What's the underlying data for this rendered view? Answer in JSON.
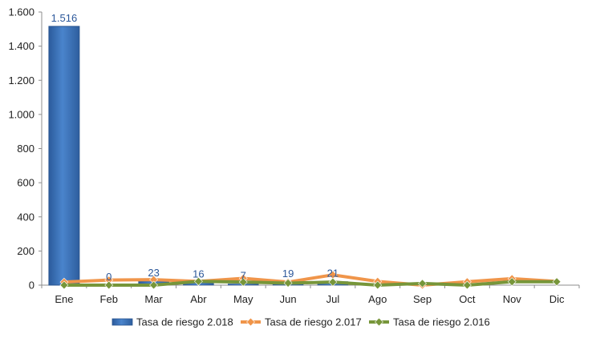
{
  "chart_data": {
    "type": "bar",
    "categories": [
      "Ene",
      "Feb",
      "Mar",
      "Abr",
      "May",
      "Jun",
      "Jul",
      "Ago",
      "Sep",
      "Oct",
      "Nov",
      "Dic"
    ],
    "ylim": [
      0,
      1600
    ],
    "yticks": [
      0,
      200,
      400,
      600,
      800,
      1000,
      1200,
      1400,
      1600
    ],
    "ytick_labels": [
      "0",
      "200",
      "400",
      "600",
      "800",
      "1.000",
      "1.200",
      "1.400",
      "1.600"
    ],
    "grid": false,
    "legend_position": "bottom",
    "series": [
      {
        "name": "Tasa de riesgo 2.018",
        "type": "bar",
        "color": "#3A70B8",
        "values": [
          1516,
          0,
          23,
          16,
          7,
          19,
          21,
          null,
          null,
          null,
          null,
          null
        ],
        "data_labels": [
          "1.516",
          "0",
          "23",
          "16",
          "7",
          "19",
          "21",
          "",
          "",
          "",
          "",
          ""
        ]
      },
      {
        "name": "Tasa de riesgo 2.017",
        "type": "line",
        "marker": "diamond",
        "color": "#F0954A",
        "values": [
          18,
          30,
          32,
          22,
          40,
          18,
          60,
          22,
          0,
          20,
          38,
          22
        ]
      },
      {
        "name": "Tasa de riesgo 2.016",
        "type": "line",
        "marker": "diamond",
        "color": "#77963A",
        "values": [
          0,
          0,
          0,
          22,
          18,
          12,
          18,
          0,
          10,
          0,
          20,
          20
        ]
      }
    ]
  }
}
